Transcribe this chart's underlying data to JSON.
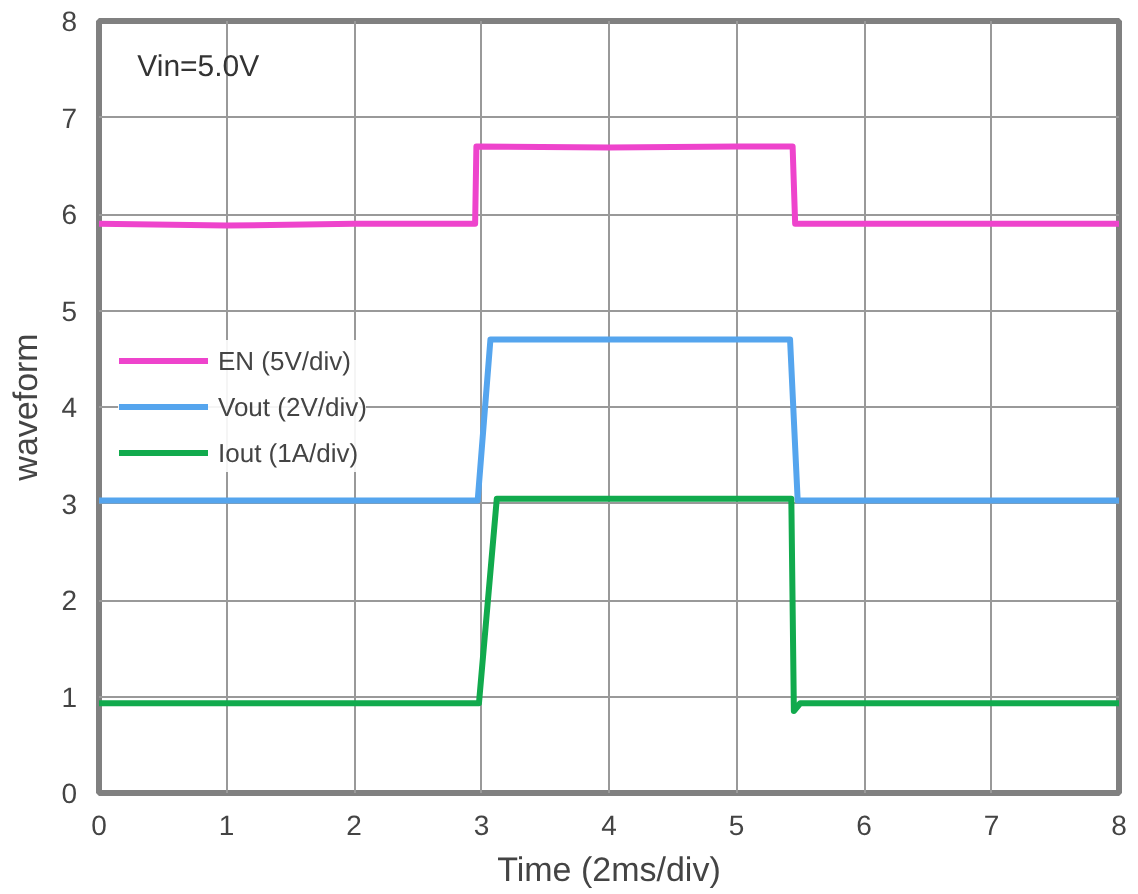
{
  "chart_data": {
    "type": "line",
    "xlabel": "Time (2ms/div)",
    "ylabel": "waveform",
    "annotations": [
      "Vin=5.0V"
    ],
    "xlim": [
      0,
      8
    ],
    "ylim": [
      0,
      8
    ],
    "xticks": [
      0,
      1,
      2,
      3,
      4,
      5,
      6,
      7,
      8
    ],
    "yticks": [
      0,
      1,
      2,
      3,
      4,
      5,
      6,
      7,
      8
    ],
    "grid": true,
    "legend": "left",
    "marker": "none",
    "line_style": "solid",
    "series": [
      {
        "name": "EN (5V/div)",
        "color": "#ee44cc",
        "x": [
          0,
          1,
          2,
          2.95,
          2.96,
          4,
          5,
          5.44,
          5.46,
          6,
          7,
          8
        ],
        "values": [
          5.9,
          5.88,
          5.9,
          5.9,
          6.7,
          6.69,
          6.7,
          6.7,
          5.9,
          5.9,
          5.9,
          5.9
        ]
      },
      {
        "name": "Vout (2V/div)",
        "color": "#55a5ee",
        "x": [
          0,
          1,
          2,
          2.97,
          3.07,
          4,
          5,
          5.42,
          5.48,
          6,
          7,
          8
        ],
        "values": [
          3.03,
          3.03,
          3.03,
          3.03,
          4.7,
          4.7,
          4.7,
          4.7,
          3.03,
          3.03,
          3.03,
          3.03
        ]
      },
      {
        "name": "Iout (1A/div)",
        "color": "#11aa4d",
        "x": [
          0,
          1,
          2,
          2.98,
          3.12,
          4,
          5,
          5.43,
          5.45,
          5.5,
          6,
          7,
          8
        ],
        "values": [
          0.93,
          0.93,
          0.93,
          0.93,
          3.05,
          3.05,
          3.05,
          3.05,
          0.85,
          0.93,
          0.93,
          0.93,
          0.93
        ]
      }
    ]
  }
}
